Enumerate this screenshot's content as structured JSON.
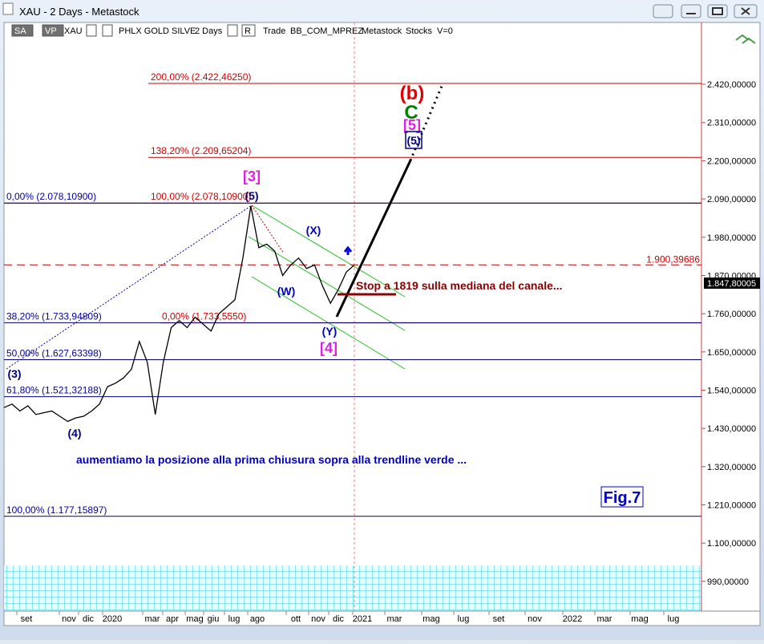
{
  "window": {
    "title": "XAU - 2 Days - Metastock"
  },
  "toolbar": {
    "items": [
      "SA",
      "VP",
      "XAU",
      "PHLX GOLD SILVE",
      "2 Days",
      "R",
      "Trade",
      "BB_COM_MPREZ",
      "Metastock",
      "Stocks",
      "V=0"
    ]
  },
  "chart": {
    "ylim": [
      909,
      2547
    ],
    "yticks": [
      {
        "value": 2420,
        "label": "2.420,00000"
      },
      {
        "value": 2310,
        "label": "2.310,00000"
      },
      {
        "value": 2200,
        "label": "2.200,00000"
      },
      {
        "value": 2090,
        "label": "2.090,00000"
      },
      {
        "value": 1980,
        "label": "1.980,00000"
      },
      {
        "value": 1870,
        "label": "1.870,00000"
      },
      {
        "value": 1760,
        "label": "1.760,00000"
      },
      {
        "value": 1650,
        "label": "1.650,00000"
      },
      {
        "value": 1540,
        "label": "1.540,00000"
      },
      {
        "value": 1430,
        "label": "1.430,00000"
      },
      {
        "value": 1320,
        "label": "1.320,00000"
      },
      {
        "value": 1210,
        "label": "1.210,00000"
      },
      {
        "value": 1100,
        "label": "1.100,00000"
      },
      {
        "value": 990,
        "label": "990,00000"
      }
    ],
    "date_labels": [
      "set",
      "nov",
      "dic",
      "2020",
      "mar",
      "apr",
      "mag",
      "giu",
      "lug",
      "ago",
      "ott",
      "nov",
      "dic",
      "2021",
      "mar",
      "mag",
      "lug",
      "set",
      "nov",
      "2022",
      "mar",
      "mag",
      "lug"
    ],
    "price": [
      1490,
      1500,
      1480,
      1495,
      1470,
      1475,
      1480,
      1465,
      1450,
      1460,
      1465,
      1480,
      1500,
      1550,
      1560,
      1575,
      1600,
      1680,
      1620,
      1470,
      1620,
      1720,
      1740,
      1720,
      1750,
      1730,
      1710,
      1760,
      1780,
      1800,
      1920,
      2070,
      1950,
      1960,
      1940,
      1870,
      1900,
      1920,
      1890,
      1900,
      1840,
      1790,
      1830,
      1880,
      1900
    ],
    "price_color": "#000000",
    "levels": [
      {
        "value": 2422.4625,
        "label": "200,00% (2.422,46250)",
        "color": "#c00000"
      },
      {
        "value": 2209.65204,
        "label": "138,20% (2.209,65204)",
        "color": "#c00000"
      },
      {
        "value": 2078.109,
        "label": "100,00% (2.078,10900)",
        "color": "#c00000"
      },
      {
        "value": 2078.109,
        "label": "0,00% (2.078,10900)",
        "color": "#000080"
      },
      {
        "value": 1733.555,
        "label": "0,00% (1.733,5550)",
        "color": "#c00000"
      },
      {
        "value": 1733.94809,
        "label": "38,20% (1.733,94809)",
        "color": "#000080"
      },
      {
        "value": 1627.63398,
        "label": "50,00% (1.627,63398)",
        "color": "#000080"
      },
      {
        "value": 1521.32188,
        "label": "61,80% (1.521,32188)",
        "color": "#000080"
      },
      {
        "value": 1177.15897,
        "label": "100,00% (1.177,15897)",
        "color": "#000080"
      }
    ],
    "dashed_level": {
      "value": 1900.39686,
      "label": "1.900,39686",
      "color": "#c00000"
    },
    "last_price": {
      "value": 1847.80005,
      "label": "1.847,80005"
    },
    "annotations": [
      {
        "text": "[3]",
        "color": "#e020e0"
      },
      {
        "text": "(5)",
        "color": "#000080"
      },
      {
        "text": "(X)",
        "color": "#0000c0"
      },
      {
        "text": "(W)",
        "color": "#0000c0"
      },
      {
        "text": "(Y)",
        "color": "#0000c0"
      },
      {
        "text": "[4]",
        "color": "#e020e0"
      },
      {
        "text": "(3)",
        "color": "#000080"
      },
      {
        "text": "(4)",
        "color": "#000080"
      },
      {
        "text": "(b)",
        "color": "#e00000"
      },
      {
        "text": "C",
        "color": "#008000"
      },
      {
        "text": "[5]",
        "color": "#e020e0"
      },
      {
        "text": "(5)",
        "color": "#000080"
      },
      {
        "text": "Stop a 1819 sulla mediana del canale...",
        "color": "#8b0000"
      },
      {
        "text": "aumentiamo la posizione alla prima chiusura sopra alla trendline verde ...",
        "color": "#0000c0"
      },
      {
        "text": "Fig.7",
        "color": "#0000c0"
      }
    ]
  }
}
